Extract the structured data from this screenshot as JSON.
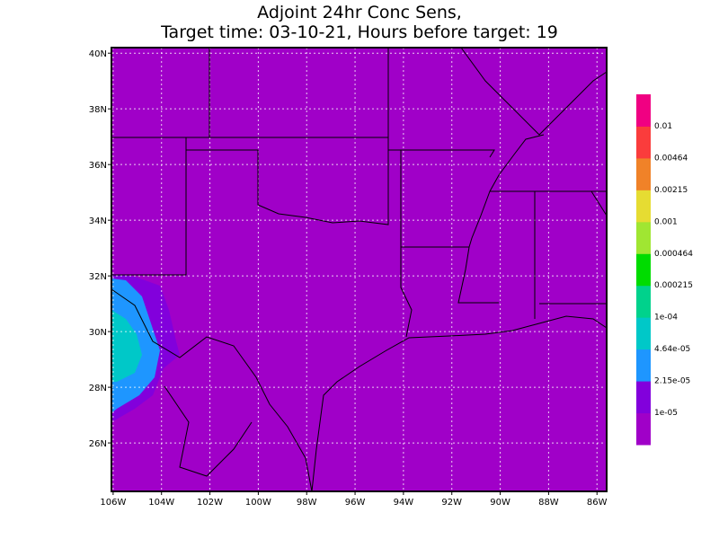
{
  "chart_data": {
    "type": "map",
    "title": "Adjoint 24hr Conc Sens,",
    "subtitle": "Target time: 03-10-21, Hours before target: 19",
    "background_color": "#a000c8",
    "xlim": [
      -106.07,
      -85.6
    ],
    "ylim": [
      24.26,
      40.2
    ],
    "xticks": [
      {
        "value": -106,
        "label": "106W"
      },
      {
        "value": -104,
        "label": "104W"
      },
      {
        "value": -102,
        "label": "102W"
      },
      {
        "value": -100,
        "label": "100W"
      },
      {
        "value": -98,
        "label": "98W"
      },
      {
        "value": -96,
        "label": "96W"
      },
      {
        "value": -94,
        "label": "94W"
      },
      {
        "value": -92,
        "label": "92W"
      },
      {
        "value": -90,
        "label": "90W"
      },
      {
        "value": -88,
        "label": "88W"
      },
      {
        "value": -86,
        "label": "86W"
      }
    ],
    "yticks": [
      {
        "value": 26,
        "label": "26N"
      },
      {
        "value": 28,
        "label": "28N"
      },
      {
        "value": 30,
        "label": "30N"
      },
      {
        "value": 32,
        "label": "32N"
      },
      {
        "value": 34,
        "label": "34N"
      },
      {
        "value": 36,
        "label": "36N"
      },
      {
        "value": 38,
        "label": "38N"
      },
      {
        "value": 40,
        "label": "40N"
      }
    ],
    "grid": true,
    "colorbar": {
      "colors": [
        "#a000c8",
        "#8200dc",
        "#1e96ff",
        "#00c8c8",
        "#00d28c",
        "#00dc00",
        "#a0e632",
        "#e6dc32",
        "#f08228",
        "#fa3c3c",
        "#f00082"
      ],
      "labels": [
        "1e-05",
        "2.15e-05",
        "4.64e-05",
        "1e-04",
        "0.000215",
        "0.000464",
        "0.001",
        "0.00215",
        "0.00464",
        "0.01"
      ]
    }
  }
}
